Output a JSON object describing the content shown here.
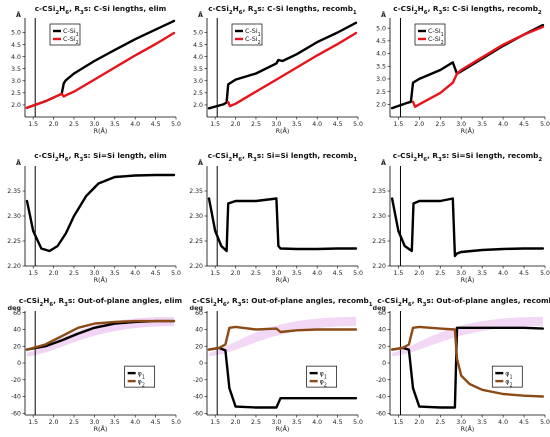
{
  "figure": {
    "chart_data": [
      {
        "type": "line",
        "title": "c-CSi2H6, R3s: C-Si lengths, elim",
        "xlabel": "R(Å)",
        "ylabel": "Å",
        "xlim": [
          1.3,
          5.0
        ],
        "ylim": [
          1.5,
          5.6
        ],
        "xticks": [
          "1.5",
          "2.0",
          "2.5",
          "3.0",
          "3.5",
          "4.0",
          "4.5",
          "5.0"
        ],
        "yticks": [
          "2.0",
          "2.5",
          "3.0",
          "3.5",
          "4.0",
          "4.5",
          "5.0"
        ],
        "vline": 1.55,
        "legend": {
          "entries": [
            "C-Si1",
            "C-Si2"
          ],
          "position": "top-left"
        },
        "series": [
          {
            "name": "C-Si1",
            "color": "#000000",
            "x": [
              1.35,
              1.8,
              2.2,
              2.25,
              2.3,
              2.5,
              3.0,
              3.5,
              4.0,
              4.5,
              4.95
            ],
            "y": [
              1.88,
              2.15,
              2.46,
              2.9,
              3.02,
              3.3,
              3.82,
              4.28,
              4.72,
              5.12,
              5.48
            ]
          },
          {
            "name": "C-Si2",
            "color": "#e8141b",
            "x": [
              1.35,
              1.8,
              2.2,
              2.25,
              2.3,
              2.5,
              3.0,
              3.5,
              4.0,
              4.5,
              4.95
            ],
            "y": [
              1.88,
              2.15,
              2.46,
              2.35,
              2.4,
              2.55,
              3.05,
              3.55,
              4.05,
              4.52,
              4.98
            ]
          }
        ]
      },
      {
        "type": "line",
        "title": "c-CSi2H6, R3s: C-Si lengths, recomb1",
        "xlabel": "R(Å)",
        "ylabel": "Å",
        "xlim": [
          1.3,
          5.0
        ],
        "ylim": [
          1.5,
          5.6
        ],
        "xticks": [
          "1.5",
          "2.0",
          "2.5",
          "3.0",
          "3.5",
          "4.0",
          "4.5",
          "5.0"
        ],
        "yticks": [
          "2.0",
          "2.5",
          "3.0",
          "3.5",
          "4.0",
          "4.5",
          "5.0"
        ],
        "vline": 1.55,
        "legend": {
          "entries": [
            "C-Si1",
            "C-Si2"
          ],
          "position": "top-left"
        },
        "series": [
          {
            "name": "C-Si1",
            "color": "#000000",
            "x": [
              1.35,
              1.7,
              1.78,
              1.82,
              2.0,
              2.5,
              3.0,
              3.05,
              3.15,
              3.5,
              4.0,
              4.5,
              4.95
            ],
            "y": [
              1.86,
              2.02,
              2.1,
              2.85,
              3.05,
              3.3,
              3.72,
              3.86,
              3.82,
              4.1,
              4.6,
              5.0,
              5.4
            ]
          },
          {
            "name": "C-Si2",
            "color": "#e8141b",
            "x": [
              1.82,
              1.86,
              2.0,
              2.5,
              3.0,
              3.5,
              4.0,
              4.5,
              4.95
            ],
            "y": [
              2.12,
              1.95,
              2.05,
              2.55,
              3.05,
              3.55,
              4.05,
              4.52,
              4.98
            ]
          }
        ]
      },
      {
        "type": "line",
        "title": "c-CSi2H6, R3s: C-Si lengths, recomb2",
        "xlabel": "R(Å)",
        "ylabel": "Å",
        "xlim": [
          1.3,
          5.0
        ],
        "ylim": [
          1.5,
          5.4
        ],
        "xticks": [
          "1.5",
          "2.0",
          "2.5",
          "3.0",
          "3.5",
          "4.0",
          "4.5",
          "5.0"
        ],
        "yticks": [
          "2.0",
          "2.5",
          "3.0",
          "3.5",
          "4.0",
          "4.5",
          "5.0"
        ],
        "vline": 1.55,
        "legend": {
          "entries": [
            "C-Si1",
            "C-Si2"
          ],
          "position": "top-left"
        },
        "series": [
          {
            "name": "C-Si1",
            "color": "#000000",
            "x": [
              1.35,
              1.7,
              1.8,
              1.85,
              2.0,
              2.5,
              2.8,
              2.9,
              3.0,
              3.5,
              4.0,
              4.5,
              4.95
            ],
            "y": [
              1.85,
              2.05,
              2.1,
              2.85,
              3.0,
              3.35,
              3.65,
              3.2,
              3.3,
              3.8,
              4.3,
              4.75,
              5.12
            ]
          },
          {
            "name": "C-Si2",
            "color": "#e8141b",
            "x": [
              1.85,
              1.9,
              2.0,
              2.5,
              2.8,
              2.9,
              3.0,
              3.5,
              4.0,
              4.5,
              4.95
            ],
            "y": [
              2.1,
              1.9,
              2.0,
              2.45,
              2.85,
              3.2,
              3.35,
              3.85,
              4.35,
              4.75,
              5.05
            ]
          }
        ]
      },
      {
        "type": "line",
        "title": "c-CSi2H6, R3s: Si=Si length, elim",
        "xlabel": "R(Å)",
        "ylabel": "Å",
        "xlim": [
          1.3,
          5.0
        ],
        "ylim": [
          2.2,
          2.4
        ],
        "xticks": [
          "1.5",
          "2.0",
          "2.5",
          "3.0",
          "3.5",
          "4.0",
          "4.5",
          "5.0"
        ],
        "yticks": [
          "2.20",
          "2.25",
          "2.30",
          "2.35"
        ],
        "vline": 1.55,
        "series": [
          {
            "name": "",
            "color": "#000000",
            "x": [
              1.35,
              1.5,
              1.7,
              1.9,
              2.1,
              2.3,
              2.5,
              2.8,
              3.1,
              3.5,
              4.0,
              4.5,
              4.95
            ],
            "y": [
              2.33,
              2.27,
              2.235,
              2.23,
              2.24,
              2.265,
              2.3,
              2.34,
              2.365,
              2.378,
              2.381,
              2.382,
              2.382
            ]
          }
        ]
      },
      {
        "type": "line",
        "title": "c-CSi2H6, R3s: Si=Si length, recomb1",
        "xlabel": "R(Å)",
        "ylabel": "Å",
        "xlim": [
          1.3,
          5.0
        ],
        "ylim": [
          2.2,
          2.4
        ],
        "xticks": [
          "1.5",
          "2.0",
          "2.5",
          "3.0",
          "3.5",
          "4.0",
          "4.5",
          "5.0"
        ],
        "yticks": [
          "2.20",
          "2.25",
          "2.30",
          "2.35"
        ],
        "vline": 1.55,
        "series": [
          {
            "name": "",
            "color": "#000000",
            "x": [
              1.35,
              1.5,
              1.65,
              1.78,
              1.82,
              2.0,
              2.5,
              3.0,
              3.05,
              3.1,
              3.5,
              4.0,
              4.5,
              4.95
            ],
            "y": [
              2.335,
              2.27,
              2.24,
              2.23,
              2.325,
              2.33,
              2.33,
              2.335,
              2.24,
              2.235,
              2.234,
              2.234,
              2.235,
              2.235
            ]
          }
        ]
      },
      {
        "type": "line",
        "title": "c-CSi2H6, R3s: Si=Si length, recomb2",
        "xlabel": "R(Å)",
        "ylabel": "Å",
        "xlim": [
          1.3,
          5.0
        ],
        "ylim": [
          2.2,
          2.4
        ],
        "xticks": [
          "1.5",
          "2.0",
          "2.5",
          "3.0",
          "3.5",
          "4.0",
          "4.5",
          "5.0"
        ],
        "yticks": [
          "2.20",
          "2.25",
          "2.30",
          "2.35"
        ],
        "vline": 1.55,
        "series": [
          {
            "name": "",
            "color": "#000000",
            "x": [
              1.35,
              1.5,
              1.65,
              1.82,
              1.86,
              2.0,
              2.5,
              2.8,
              2.85,
              2.9,
              3.0,
              3.5,
              4.0,
              4.5,
              4.95
            ],
            "y": [
              2.335,
              2.27,
              2.24,
              2.23,
              2.325,
              2.33,
              2.33,
              2.335,
              2.22,
              2.225,
              2.228,
              2.232,
              2.234,
              2.235,
              2.235
            ]
          }
        ]
      },
      {
        "type": "line",
        "title": "c-CSi2H6, R3s: Out-of-plane angles, elim",
        "xlabel": "R(Å)",
        "ylabel": "deg",
        "xlim": [
          1.3,
          5.0
        ],
        "ylim": [
          -62,
          62
        ],
        "xticks": [
          "1.5",
          "2.0",
          "2.5",
          "3.0",
          "3.5",
          "4.0",
          "4.5",
          "5.0"
        ],
        "yticks": [
          "-60",
          "-40",
          "-20",
          "0",
          "20",
          "40",
          "60"
        ],
        "vline": 1.55,
        "legend": {
          "entries": [
            "φ1",
            "φ2"
          ],
          "position": "center-right"
        },
        "series": [
          {
            "name": "φ1",
            "color": "#000000",
            "x": [
              1.35,
              1.8,
              2.2,
              2.6,
              3.0,
              3.5,
              4.0,
              4.5,
              4.95
            ],
            "y": [
              16,
              20,
              27,
              35,
              42,
              47,
              49,
              50,
              50
            ]
          },
          {
            "name": "φ2",
            "color": "#8b4a16",
            "x": [
              1.35,
              1.8,
              2.2,
              2.6,
              3.0,
              3.5,
              4.0,
              4.5,
              4.95
            ],
            "y": [
              16,
              22,
              32,
              42,
              47,
              49,
              50,
              50,
              50
            ]
          }
        ]
      },
      {
        "type": "line",
        "title": "c-CSi2H6, R3s: Out-of-plane angles, recomb1",
        "xlabel": "R(Å)",
        "ylabel": "deg",
        "xlim": [
          1.3,
          5.0
        ],
        "ylim": [
          -62,
          62
        ],
        "xticks": [
          "1.5",
          "2.0",
          "2.5",
          "3.0",
          "3.5",
          "4.0",
          "4.5",
          "5.0"
        ],
        "yticks": [
          "-60",
          "-40",
          "-20",
          "0",
          "20",
          "40",
          "60"
        ],
        "vline": 1.55,
        "legend": {
          "entries": [
            "φ1",
            "φ2"
          ],
          "position": "center-right"
        },
        "series": [
          {
            "name": "φ1",
            "color": "#000000",
            "x": [
              1.35,
              1.6,
              1.75,
              1.85,
              2.0,
              2.5,
              3.0,
              3.1,
              3.5,
              4.0,
              4.5,
              4.95
            ],
            "y": [
              16,
              18,
              15,
              -30,
              -52,
              -53,
              -53,
              -42,
              -42,
              -42,
              -42,
              -42
            ]
          },
          {
            "name": "φ2",
            "color": "#8b4a16",
            "x": [
              1.35,
              1.6,
              1.75,
              1.85,
              2.0,
              2.5,
              3.0,
              3.1,
              3.5,
              4.0,
              4.5,
              4.95
            ],
            "y": [
              16,
              18,
              22,
              42,
              43,
              40,
              41,
              37,
              39,
              40,
              40,
              40
            ]
          }
        ]
      },
      {
        "type": "line",
        "title": "c-CSi2H6, R3s: Out-of-plane angles, recomb2",
        "xlabel": "R(Å)",
        "ylabel": "deg",
        "xlim": [
          1.3,
          5.0
        ],
        "ylim": [
          -62,
          62
        ],
        "xticks": [
          "1.5",
          "2.0",
          "2.5",
          "3.0",
          "3.5",
          "4.0",
          "4.5",
          "5.0"
        ],
        "yticks": [
          "-60",
          "-40",
          "-20",
          "0",
          "20",
          "40",
          "60"
        ],
        "vline": 1.55,
        "legend": {
          "entries": [
            "φ1",
            "φ2"
          ],
          "position": "center-right"
        },
        "series": [
          {
            "name": "φ1",
            "color": "#000000",
            "x": [
              1.35,
              1.6,
              1.75,
              1.85,
              2.0,
              2.5,
              2.85,
              2.9,
              3.2,
              3.5,
              4.0,
              4.5,
              4.95
            ],
            "y": [
              16,
              18,
              16,
              -30,
              -52,
              -53,
              -53,
              42,
              42,
              42,
              42,
              42,
              41
            ]
          },
          {
            "name": "φ2",
            "color": "#8b4a16",
            "x": [
              1.35,
              1.6,
              1.75,
              1.85,
              2.0,
              2.5,
              2.85,
              2.9,
              3.0,
              3.2,
              3.5,
              4.0,
              4.5,
              4.95
            ],
            "y": [
              16,
              18,
              22,
              42,
              43,
              41,
              40,
              5,
              -15,
              -25,
              -32,
              -37,
              -39,
              -40
            ]
          }
        ]
      }
    ]
  }
}
